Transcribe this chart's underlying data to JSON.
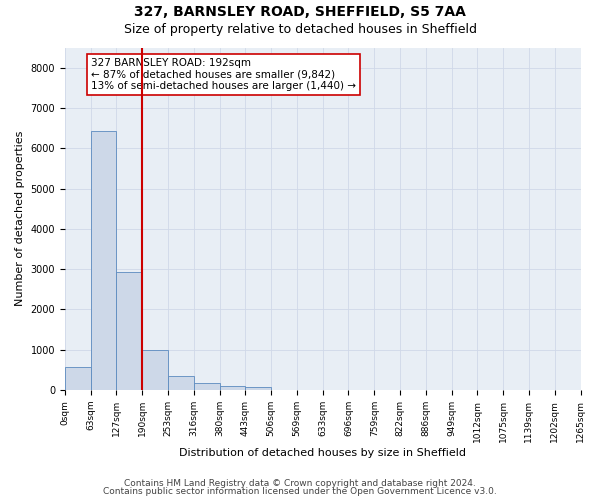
{
  "title": "327, BARNSLEY ROAD, SHEFFIELD, S5 7AA",
  "subtitle": "Size of property relative to detached houses in Sheffield",
  "xlabel": "Distribution of detached houses by size in Sheffield",
  "ylabel": "Number of detached properties",
  "bar_values": [
    570,
    6430,
    2920,
    990,
    360,
    165,
    95,
    75,
    0,
    0,
    0,
    0,
    0,
    0,
    0,
    0,
    0,
    0,
    0,
    0
  ],
  "bar_labels": [
    "0sqm",
    "63sqm",
    "127sqm",
    "190sqm",
    "253sqm",
    "316sqm",
    "380sqm",
    "443sqm",
    "506sqm",
    "569sqm",
    "633sqm",
    "696sqm",
    "759sqm",
    "822sqm",
    "886sqm",
    "949sqm",
    "1012sqm",
    "1075sqm",
    "1139sqm",
    "1202sqm",
    "1265sqm"
  ],
  "bar_color": "#cdd8e8",
  "bar_edge_color": "#5b8abf",
  "vline_x": 3.0,
  "vline_color": "#cc0000",
  "annotation_text": "327 BARNSLEY ROAD: 192sqm\n← 87% of detached houses are smaller (9,842)\n13% of semi-detached houses are larger (1,440) →",
  "annotation_box_color": "#ffffff",
  "annotation_box_edge_color": "#cc0000",
  "ylim": [
    0,
    8500
  ],
  "yticks": [
    0,
    1000,
    2000,
    3000,
    4000,
    5000,
    6000,
    7000,
    8000
  ],
  "grid_color": "#d0d8e8",
  "bg_color": "#e8eef5",
  "footer_line1": "Contains HM Land Registry data © Crown copyright and database right 2024.",
  "footer_line2": "Contains public sector information licensed under the Open Government Licence v3.0.",
  "title_fontsize": 10,
  "subtitle_fontsize": 9,
  "axis_label_fontsize": 8,
  "tick_fontsize": 6.5,
  "annotation_fontsize": 7.5,
  "footer_fontsize": 6.5
}
